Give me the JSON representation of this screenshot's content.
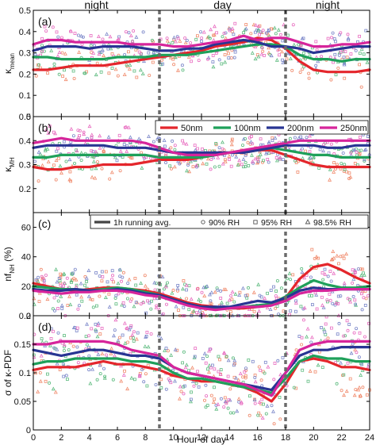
{
  "figure": {
    "xlabel": "Hour of day",
    "period_labels": [
      {
        "text": "night",
        "x": 4.5
      },
      {
        "text": "day",
        "x": 13.5
      },
      {
        "text": "night",
        "x": 21
      }
    ],
    "day_boundaries": [
      9,
      18
    ],
    "colors": {
      "50nm": "#e4262c",
      "100nm": "#1fa05a",
      "200nm": "#283593",
      "250nm": "#d6259b",
      "avg_legend": "#444444",
      "scatter_red": "#f08a6c",
      "scatter_green": "#5dbb7f",
      "scatter_blue": "#7a86c9",
      "scatter_magenta": "#e86cc0",
      "divider": "#6b6b6b"
    }
  },
  "chart_data": [
    {
      "type": "line",
      "panel": "(a)",
      "ylabel_main": "κ",
      "ylabel_sub": "mean",
      "ylim": [
        0,
        0.5
      ],
      "yticks": [
        0,
        0.1,
        0.2,
        0.3,
        0.4,
        0.5
      ],
      "xlim": [
        0,
        24
      ],
      "xticks": [
        0,
        2,
        4,
        6,
        8,
        10,
        12,
        14,
        16,
        18,
        20,
        22,
        24
      ],
      "x": [
        0,
        1,
        2,
        3,
        4,
        5,
        6,
        7,
        8,
        9,
        10,
        11,
        12,
        13,
        14,
        15,
        16,
        17,
        18,
        19,
        20,
        21,
        22,
        23,
        24
      ],
      "series": [
        {
          "name": "50nm",
          "values": [
            0.22,
            0.22,
            0.23,
            0.24,
            0.24,
            0.24,
            0.25,
            0.26,
            0.27,
            0.28,
            0.29,
            0.3,
            0.31,
            0.33,
            0.34,
            0.35,
            0.37,
            0.36,
            0.32,
            0.26,
            0.22,
            0.21,
            0.21,
            0.21,
            0.22
          ]
        },
        {
          "name": "100nm",
          "values": [
            0.28,
            0.28,
            0.27,
            0.27,
            0.27,
            0.27,
            0.28,
            0.28,
            0.28,
            0.29,
            0.29,
            0.29,
            0.3,
            0.31,
            0.32,
            0.33,
            0.34,
            0.34,
            0.33,
            0.29,
            0.27,
            0.27,
            0.26,
            0.27,
            0.27
          ]
        },
        {
          "name": "200nm",
          "values": [
            0.31,
            0.33,
            0.33,
            0.33,
            0.32,
            0.33,
            0.33,
            0.33,
            0.32,
            0.31,
            0.31,
            0.32,
            0.32,
            0.34,
            0.35,
            0.36,
            0.35,
            0.33,
            0.33,
            0.32,
            0.3,
            0.31,
            0.32,
            0.33,
            0.33
          ]
        },
        {
          "name": "250nm",
          "values": [
            0.34,
            0.36,
            0.36,
            0.35,
            0.35,
            0.35,
            0.35,
            0.34,
            0.34,
            0.34,
            0.33,
            0.33,
            0.34,
            0.35,
            0.36,
            0.38,
            0.36,
            0.37,
            0.37,
            0.35,
            0.33,
            0.33,
            0.34,
            0.34,
            0.35
          ]
        }
      ],
      "scatter_spread": 0.08
    },
    {
      "type": "line",
      "panel": "(b)",
      "ylabel_main": "κ",
      "ylabel_sub": "MH",
      "ylim": [
        0.1,
        0.5
      ],
      "yticks": [
        0.2,
        0.3,
        0.4,
        0.5
      ],
      "xlim": [
        0,
        24
      ],
      "xticks": [
        0,
        2,
        4,
        6,
        8,
        10,
        12,
        14,
        16,
        18,
        20,
        22,
        24
      ],
      "x": [
        0,
        1,
        2,
        3,
        4,
        5,
        6,
        7,
        8,
        9,
        10,
        11,
        12,
        13,
        14,
        15,
        16,
        17,
        18,
        19,
        20,
        21,
        22,
        23,
        24
      ],
      "legend": [
        "50nm",
        "100nm",
        "200nm",
        "250nm"
      ],
      "series": [
        {
          "name": "50nm",
          "values": [
            0.29,
            0.28,
            0.28,
            0.29,
            0.29,
            0.3,
            0.3,
            0.3,
            0.31,
            0.32,
            0.32,
            0.32,
            0.33,
            0.34,
            0.35,
            0.35,
            0.36,
            0.36,
            0.34,
            0.32,
            0.3,
            0.29,
            0.29,
            0.29,
            0.29
          ]
        },
        {
          "name": "100nm",
          "values": [
            0.33,
            0.33,
            0.34,
            0.34,
            0.34,
            0.34,
            0.34,
            0.34,
            0.34,
            0.33,
            0.33,
            0.33,
            0.33,
            0.34,
            0.35,
            0.35,
            0.36,
            0.37,
            0.36,
            0.35,
            0.34,
            0.34,
            0.33,
            0.33,
            0.33
          ]
        },
        {
          "name": "200nm",
          "values": [
            0.37,
            0.38,
            0.38,
            0.38,
            0.38,
            0.38,
            0.37,
            0.37,
            0.37,
            0.36,
            0.35,
            0.35,
            0.35,
            0.35,
            0.35,
            0.35,
            0.36,
            0.37,
            0.38,
            0.38,
            0.38,
            0.37,
            0.37,
            0.38,
            0.38
          ]
        },
        {
          "name": "250nm",
          "values": [
            0.39,
            0.4,
            0.41,
            0.4,
            0.4,
            0.4,
            0.4,
            0.4,
            0.39,
            0.37,
            0.35,
            0.34,
            0.34,
            0.34,
            0.35,
            0.36,
            0.37,
            0.38,
            0.39,
            0.4,
            0.4,
            0.4,
            0.4,
            0.4,
            0.4
          ]
        }
      ],
      "scatter_spread": 0.06
    },
    {
      "type": "line",
      "panel": "(c)",
      "ylabel_main": "nf",
      "ylabel_sub": "NH",
      "ylabel_unit": " (%)",
      "ylim": [
        0,
        70
      ],
      "yticks": [
        0,
        20,
        40,
        60
      ],
      "xlim": [
        0,
        24
      ],
      "xticks": [
        0,
        2,
        4,
        6,
        8,
        10,
        12,
        14,
        16,
        18,
        20,
        22,
        24
      ],
      "x": [
        0,
        1,
        2,
        3,
        4,
        5,
        6,
        7,
        8,
        9,
        10,
        11,
        12,
        13,
        14,
        15,
        16,
        17,
        18,
        19,
        20,
        21,
        22,
        23,
        24
      ],
      "legend_items": [
        "1h running avg.",
        "90% RH",
        "95% RH",
        "98.5% RH"
      ],
      "series": [
        {
          "name": "50nm",
          "values": [
            22,
            20,
            18,
            17,
            18,
            19,
            19,
            18,
            17,
            15,
            12,
            9,
            7,
            6,
            5,
            5,
            6,
            7,
            12,
            25,
            33,
            35,
            31,
            26,
            22
          ]
        },
        {
          "name": "100nm",
          "values": [
            20,
            19,
            18,
            18,
            17,
            18,
            19,
            18,
            16,
            14,
            11,
            8,
            6,
            5,
            5,
            6,
            7,
            8,
            13,
            19,
            24,
            21,
            19,
            19,
            20
          ]
        },
        {
          "name": "200nm",
          "values": [
            18,
            17,
            17,
            18,
            17,
            17,
            18,
            17,
            15,
            14,
            11,
            8,
            6,
            6,
            6,
            8,
            10,
            9,
            12,
            17,
            19,
            18,
            18,
            18,
            18
          ]
        },
        {
          "name": "250nm",
          "values": [
            17,
            16,
            15,
            16,
            16,
            17,
            17,
            16,
            14,
            13,
            10,
            7,
            5,
            4,
            5,
            6,
            6,
            7,
            10,
            15,
            17,
            17,
            18,
            18,
            18
          ]
        }
      ],
      "scatter_spread": 14
    },
    {
      "type": "line",
      "panel": "(d)",
      "ylabel_main": "σ of κ-PDF",
      "ylim": [
        0,
        0.2
      ],
      "yticks": [
        0,
        0.05,
        0.1,
        0.15,
        0.2
      ],
      "xlim": [
        0,
        24
      ],
      "xticks": [
        0,
        2,
        4,
        6,
        8,
        10,
        12,
        14,
        16,
        18,
        20,
        22,
        24
      ],
      "x": [
        0,
        1,
        2,
        3,
        4,
        5,
        6,
        7,
        8,
        9,
        10,
        11,
        12,
        13,
        14,
        15,
        16,
        17,
        18,
        19,
        20,
        21,
        22,
        23,
        24
      ],
      "series": [
        {
          "name": "50nm",
          "values": [
            0.105,
            0.11,
            0.11,
            0.11,
            0.115,
            0.12,
            0.115,
            0.115,
            0.11,
            0.105,
            0.095,
            0.09,
            0.085,
            0.085,
            0.08,
            0.075,
            0.065,
            0.05,
            0.08,
            0.12,
            0.125,
            0.12,
            0.11,
            0.11,
            0.105
          ]
        },
        {
          "name": "100nm",
          "values": [
            0.115,
            0.12,
            0.12,
            0.125,
            0.125,
            0.125,
            0.125,
            0.12,
            0.12,
            0.115,
            0.1,
            0.09,
            0.09,
            0.085,
            0.08,
            0.075,
            0.07,
            0.065,
            0.09,
            0.12,
            0.13,
            0.125,
            0.125,
            0.12,
            0.12
          ]
        },
        {
          "name": "200nm",
          "values": [
            0.14,
            0.135,
            0.13,
            0.135,
            0.14,
            0.14,
            0.135,
            0.13,
            0.13,
            0.125,
            0.11,
            0.1,
            0.095,
            0.09,
            0.085,
            0.08,
            0.075,
            0.07,
            0.1,
            0.13,
            0.14,
            0.14,
            0.145,
            0.145,
            0.145
          ]
        },
        {
          "name": "250nm",
          "values": [
            0.15,
            0.15,
            0.155,
            0.155,
            0.155,
            0.155,
            0.15,
            0.14,
            0.135,
            0.13,
            0.11,
            0.1,
            0.095,
            0.09,
            0.085,
            0.08,
            0.07,
            0.06,
            0.1,
            0.14,
            0.15,
            0.155,
            0.155,
            0.155,
            0.155
          ]
        }
      ],
      "scatter_spread": 0.05
    }
  ]
}
